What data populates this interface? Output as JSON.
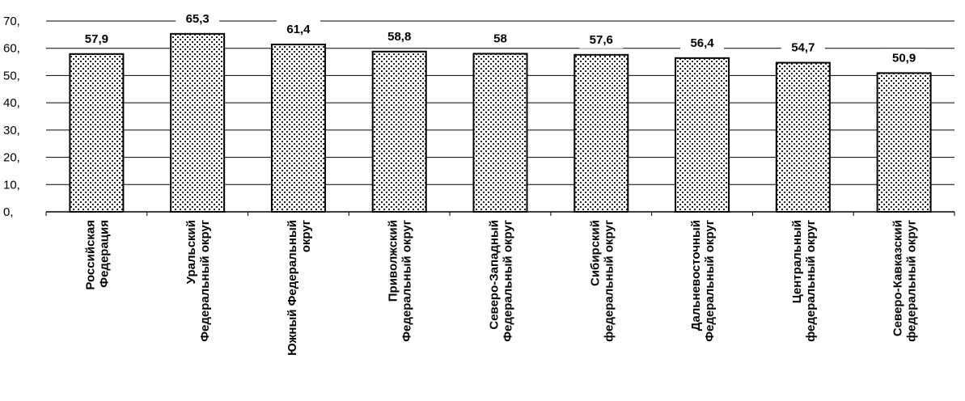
{
  "chart_data": {
    "type": "bar",
    "title": "",
    "xlabel": "",
    "ylabel": "",
    "ylim": [
      0,
      70
    ],
    "y_ticks": [
      "0,",
      "10,",
      "20,",
      "30,",
      "40,",
      "50,",
      "60,",
      "70,"
    ],
    "grid": true,
    "legend": "none",
    "categories": [
      [
        "Российская",
        "Федерация"
      ],
      [
        "Уральский",
        "Федеральный округ"
      ],
      [
        "Южный Федеральный",
        "округ"
      ],
      [
        "Приволжский",
        "Федеральный округ"
      ],
      [
        "Северо-Западный",
        "Федеральный округ"
      ],
      [
        "Сибирский",
        "федеральный округ"
      ],
      [
        "Дальневосточный",
        "Федеральный округ"
      ],
      [
        "Центральный",
        "федеральный округ"
      ],
      [
        "Северо-Кавказский",
        "федеральный округ"
      ]
    ],
    "values": [
      57.9,
      65.3,
      61.4,
      58.8,
      58,
      57.6,
      56.4,
      54.7,
      50.9
    ],
    "value_labels": [
      "57,9",
      "65,3",
      "61,4",
      "58,8",
      "58",
      "57,6",
      "56,4",
      "54,7",
      "50,9"
    ],
    "colors": {
      "bar_fill": "#ffffff",
      "bar_pattern": "#222222",
      "bar_stroke": "#000000",
      "gridline": "#000000"
    }
  }
}
